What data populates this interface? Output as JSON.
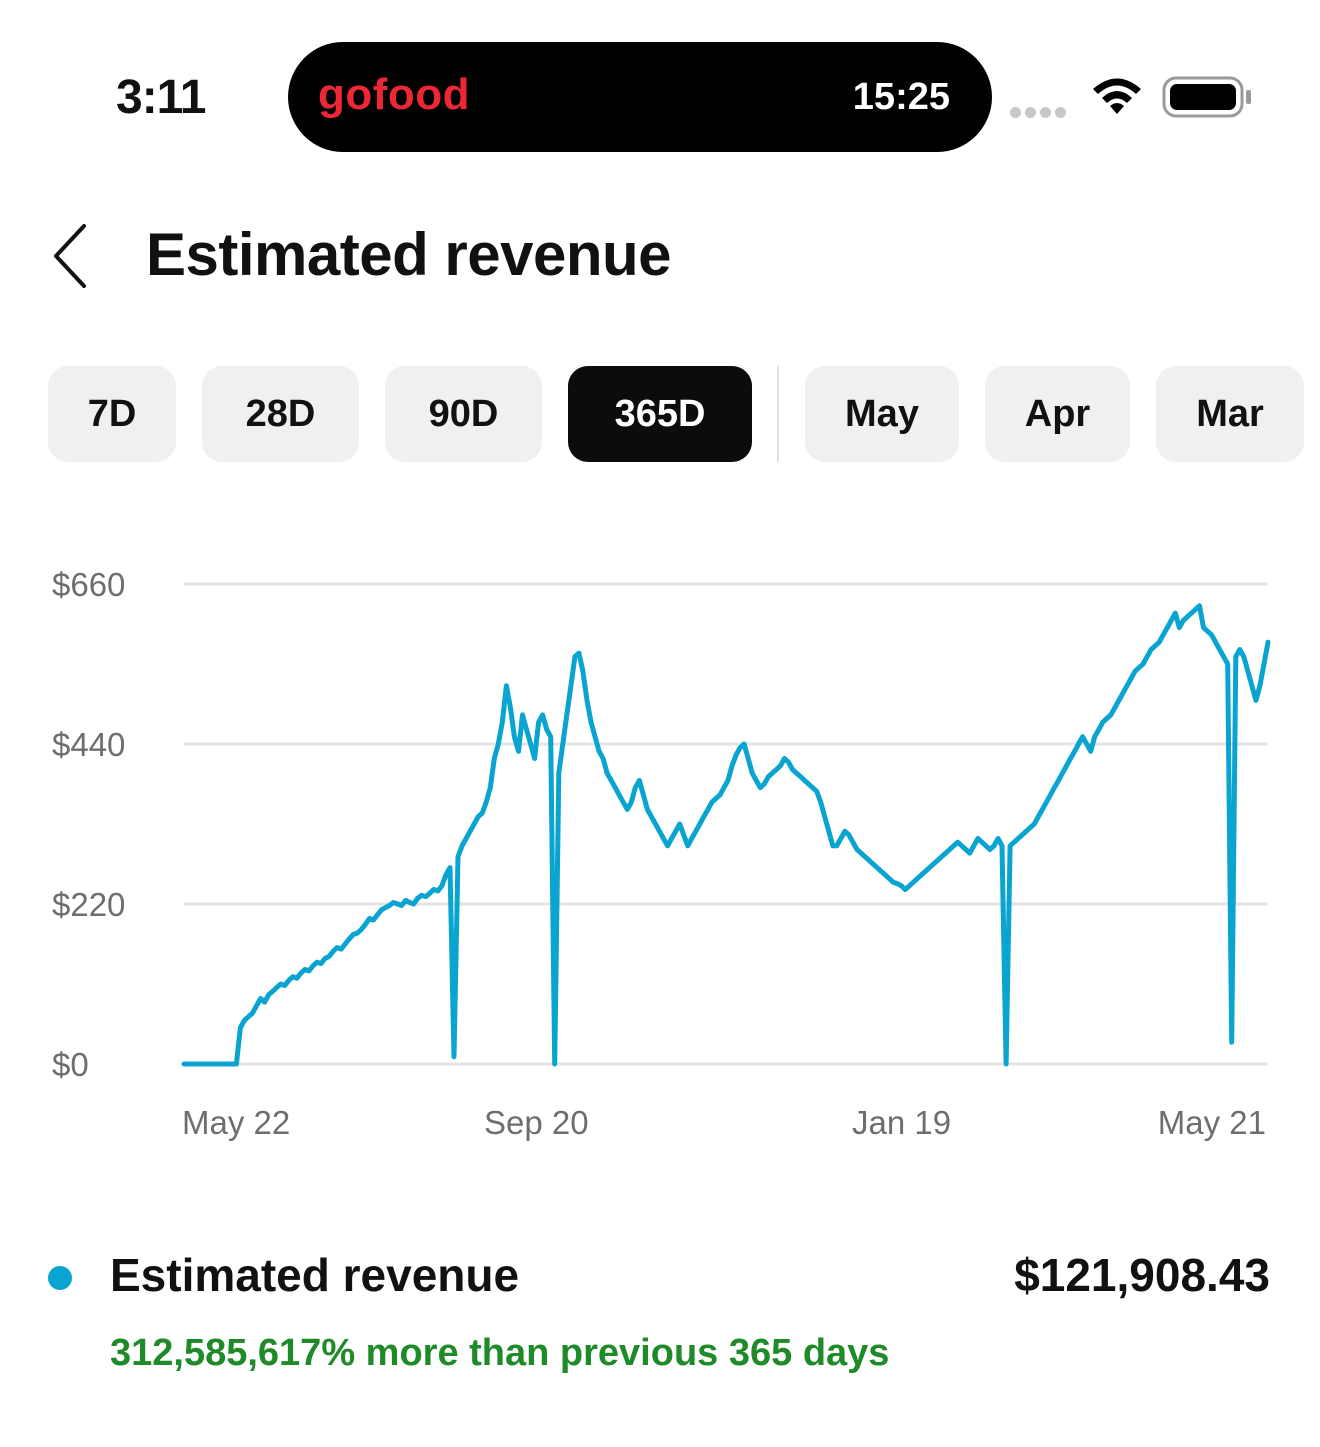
{
  "status_bar": {
    "time": "3:11",
    "island_brand": "gofood",
    "island_time": "15:25"
  },
  "header": {
    "title": "Estimated revenue"
  },
  "range_tabs": [
    {
      "label": "7D",
      "active": false
    },
    {
      "label": "28D",
      "active": false
    },
    {
      "label": "90D",
      "active": false
    },
    {
      "label": "365D",
      "active": true
    },
    {
      "label": "May",
      "active": false
    },
    {
      "label": "Apr",
      "active": false
    },
    {
      "label": "Mar",
      "active": false
    }
  ],
  "colors": {
    "series": "#09a4cf",
    "accent_brand": "#ee2737",
    "positive_change": "#1f8a28",
    "active_tab": "#0c0c0c",
    "tab_background": "#f0f0f0"
  },
  "chart_data": {
    "type": "line",
    "x_ticks": [
      "May 22",
      "Sep 20",
      "Jan 19",
      "May 21"
    ],
    "y_ticks": [
      "$0",
      "$220",
      "$440",
      "$660"
    ],
    "ylim": [
      0,
      660
    ],
    "grid": true,
    "series": [
      {
        "name": "Estimated revenue",
        "values": [
          0,
          0,
          0,
          0,
          0,
          0,
          0,
          0,
          0,
          0,
          0,
          0,
          0,
          0,
          50,
          60,
          65,
          70,
          80,
          90,
          85,
          95,
          100,
          105,
          110,
          108,
          115,
          120,
          118,
          125,
          130,
          128,
          135,
          140,
          138,
          145,
          148,
          155,
          160,
          158,
          165,
          172,
          178,
          180,
          185,
          192,
          200,
          198,
          205,
          212,
          215,
          218,
          222,
          220,
          218,
          225,
          222,
          220,
          228,
          232,
          230,
          235,
          240,
          238,
          245,
          260,
          270,
          10,
          285,
          300,
          310,
          320,
          330,
          340,
          345,
          360,
          380,
          420,
          440,
          470,
          520,
          490,
          450,
          430,
          480,
          460,
          440,
          420,
          470,
          480,
          460,
          450,
          0,
          400,
          440,
          480,
          520,
          560,
          565,
          540,
          500,
          470,
          450,
          430,
          420,
          400,
          390,
          380,
          370,
          360,
          350,
          360,
          380,
          390,
          370,
          350,
          340,
          330,
          320,
          310,
          300,
          310,
          320,
          330,
          315,
          300,
          310,
          320,
          330,
          340,
          350,
          360,
          365,
          370,
          380,
          390,
          410,
          425,
          435,
          440,
          420,
          400,
          390,
          380,
          385,
          395,
          400,
          405,
          410,
          420,
          415,
          405,
          400,
          395,
          390,
          385,
          380,
          375,
          360,
          340,
          320,
          300,
          300,
          310,
          320,
          315,
          305,
          295,
          290,
          285,
          280,
          275,
          270,
          265,
          260,
          255,
          250,
          248,
          245,
          240,
          245,
          250,
          255,
          260,
          265,
          270,
          275,
          280,
          285,
          290,
          295,
          300,
          305,
          300,
          295,
          290,
          300,
          310,
          305,
          300,
          295,
          300,
          310,
          300,
          0,
          300,
          305,
          310,
          315,
          320,
          325,
          330,
          340,
          350,
          360,
          370,
          380,
          390,
          400,
          410,
          420,
          430,
          440,
          450,
          440,
          430,
          450,
          460,
          470,
          475,
          480,
          490,
          500,
          510,
          520,
          530,
          540,
          545,
          550,
          560,
          570,
          575,
          580,
          590,
          600,
          610,
          620,
          600,
          610,
          615,
          620,
          625,
          630,
          600,
          595,
          590,
          580,
          570,
          560,
          550,
          30,
          560,
          570,
          560,
          540,
          520,
          500,
          520,
          550,
          580
        ]
      }
    ]
  },
  "summary": {
    "label": "Estimated revenue",
    "total": "$121,908.43",
    "change": "312,585,617% more than previous 365 days"
  }
}
